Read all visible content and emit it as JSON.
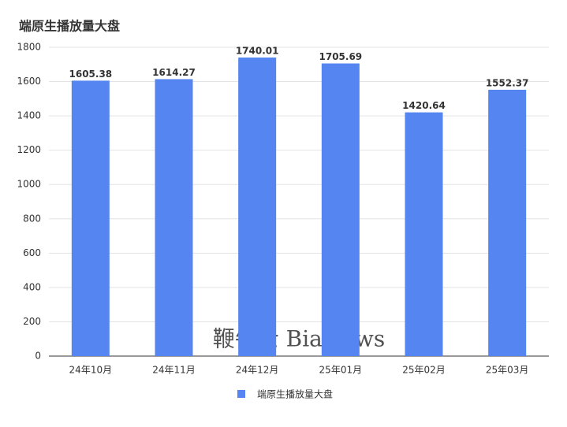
{
  "chart_data": {
    "type": "bar",
    "title": "端原生播放量大盘",
    "categories": [
      "24年10月",
      "24年11月",
      "24年12月",
      "25年01月",
      "25年02月",
      "25年03月"
    ],
    "series": [
      {
        "name": "端原生播放量大盘",
        "color": "#5585f0",
        "values": [
          1605.38,
          1614.27,
          1740.01,
          1705.69,
          1420.64,
          1552.37
        ]
      }
    ],
    "ylim": [
      0,
      1800
    ],
    "yticks": [
      0,
      200,
      400,
      600,
      800,
      1000,
      1200,
      1400,
      1600,
      1800
    ],
    "grid": true,
    "legend": "bottom",
    "watermark": "鞭牛士 BiaNews"
  }
}
